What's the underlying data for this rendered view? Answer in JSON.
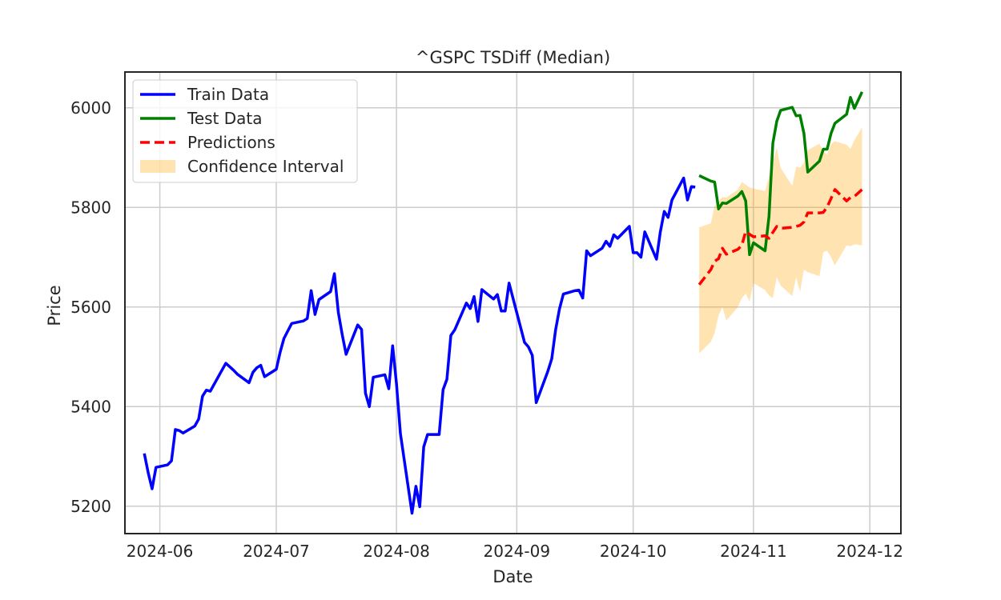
{
  "chart_data": {
    "type": "line",
    "title": "^GSPC TSDiff (Median)",
    "xlabel": "Date",
    "ylabel": "Price",
    "xlim": [
      "2024-05-23",
      "2024-12-09"
    ],
    "ylim": [
      5145,
      6072
    ],
    "grid": true,
    "legend_position": "top-left",
    "x_ticks": [
      "2024-06-01",
      "2024-07-01",
      "2024-08-01",
      "2024-09-01",
      "2024-10-01",
      "2024-11-01",
      "2024-12-01"
    ],
    "x_tick_labels": [
      "2024-06",
      "2024-07",
      "2024-08",
      "2024-09",
      "2024-10",
      "2024-11",
      "2024-12"
    ],
    "y_ticks": [
      5200,
      5400,
      5600,
      5800,
      6000
    ],
    "y_tick_labels": [
      "5200",
      "5400",
      "5600",
      "5800",
      "6000"
    ],
    "colors": {
      "train": "#0000ff",
      "test": "#008000",
      "predictions": "#ff0000",
      "confidence": "#ffa500"
    },
    "series": [
      {
        "name": "Train Data",
        "style": "solid",
        "color": "#0000ff",
        "points": [
          [
            "2024-05-28",
            5306
          ],
          [
            "2024-05-29",
            5267
          ],
          [
            "2024-05-30",
            5235
          ],
          [
            "2024-05-31",
            5278
          ],
          [
            "2024-06-03",
            5283
          ],
          [
            "2024-06-04",
            5291
          ],
          [
            "2024-06-05",
            5354
          ],
          [
            "2024-06-06",
            5352
          ],
          [
            "2024-06-07",
            5347
          ],
          [
            "2024-06-10",
            5361
          ],
          [
            "2024-06-11",
            5375
          ],
          [
            "2024-06-12",
            5421
          ],
          [
            "2024-06-13",
            5433
          ],
          [
            "2024-06-14",
            5431
          ],
          [
            "2024-06-17",
            5473
          ],
          [
            "2024-06-18",
            5487
          ],
          [
            "2024-06-20",
            5473
          ],
          [
            "2024-06-21",
            5465
          ],
          [
            "2024-06-24",
            5448
          ],
          [
            "2024-06-25",
            5469
          ],
          [
            "2024-06-26",
            5478
          ],
          [
            "2024-06-27",
            5483
          ],
          [
            "2024-06-28",
            5460
          ],
          [
            "2024-07-01",
            5475
          ],
          [
            "2024-07-02",
            5509
          ],
          [
            "2024-07-03",
            5537
          ],
          [
            "2024-07-05",
            5567
          ],
          [
            "2024-07-08",
            5572
          ],
          [
            "2024-07-09",
            5577
          ],
          [
            "2024-07-10",
            5633
          ],
          [
            "2024-07-11",
            5585
          ],
          [
            "2024-07-12",
            5615
          ],
          [
            "2024-07-15",
            5631
          ],
          [
            "2024-07-16",
            5667
          ],
          [
            "2024-07-17",
            5589
          ],
          [
            "2024-07-18",
            5545
          ],
          [
            "2024-07-19",
            5505
          ],
          [
            "2024-07-22",
            5564
          ],
          [
            "2024-07-23",
            5555
          ],
          [
            "2024-07-24",
            5427
          ],
          [
            "2024-07-25",
            5400
          ],
          [
            "2024-07-26",
            5459
          ],
          [
            "2024-07-29",
            5464
          ],
          [
            "2024-07-30",
            5436
          ],
          [
            "2024-07-31",
            5522
          ],
          [
            "2024-08-01",
            5446
          ],
          [
            "2024-08-02",
            5346
          ],
          [
            "2024-08-05",
            5186
          ],
          [
            "2024-08-06",
            5240
          ],
          [
            "2024-08-07",
            5199
          ],
          [
            "2024-08-08",
            5319
          ],
          [
            "2024-08-09",
            5344
          ],
          [
            "2024-08-12",
            5344
          ],
          [
            "2024-08-13",
            5434
          ],
          [
            "2024-08-14",
            5455
          ],
          [
            "2024-08-15",
            5543
          ],
          [
            "2024-08-16",
            5554
          ],
          [
            "2024-08-19",
            5608
          ],
          [
            "2024-08-20",
            5597
          ],
          [
            "2024-08-21",
            5621
          ],
          [
            "2024-08-22",
            5571
          ],
          [
            "2024-08-23",
            5635
          ],
          [
            "2024-08-26",
            5616
          ],
          [
            "2024-08-27",
            5625
          ],
          [
            "2024-08-28",
            5592
          ],
          [
            "2024-08-29",
            5592
          ],
          [
            "2024-08-30",
            5648
          ],
          [
            "2024-09-03",
            5529
          ],
          [
            "2024-09-04",
            5520
          ],
          [
            "2024-09-05",
            5503
          ],
          [
            "2024-09-06",
            5408
          ],
          [
            "2024-09-09",
            5471
          ],
          [
            "2024-09-10",
            5496
          ],
          [
            "2024-09-11",
            5554
          ],
          [
            "2024-09-12",
            5596
          ],
          [
            "2024-09-13",
            5626
          ],
          [
            "2024-09-16",
            5633
          ],
          [
            "2024-09-17",
            5634
          ],
          [
            "2024-09-18",
            5618
          ],
          [
            "2024-09-19",
            5713
          ],
          [
            "2024-09-20",
            5703
          ],
          [
            "2024-09-23",
            5718
          ],
          [
            "2024-09-24",
            5732
          ],
          [
            "2024-09-25",
            5722
          ],
          [
            "2024-09-26",
            5745
          ],
          [
            "2024-09-27",
            5738
          ],
          [
            "2024-09-30",
            5762
          ],
          [
            "2024-10-01",
            5709
          ],
          [
            "2024-10-02",
            5709
          ],
          [
            "2024-10-03",
            5700
          ],
          [
            "2024-10-04",
            5751
          ],
          [
            "2024-10-07",
            5696
          ],
          [
            "2024-10-08",
            5751
          ],
          [
            "2024-10-09",
            5792
          ],
          [
            "2024-10-10",
            5780
          ],
          [
            "2024-10-11",
            5815
          ],
          [
            "2024-10-14",
            5859
          ],
          [
            "2024-10-15",
            5815
          ],
          [
            "2024-10-16",
            5842
          ],
          [
            "2024-10-17",
            5841
          ]
        ]
      },
      {
        "name": "Test Data",
        "style": "solid",
        "color": "#008000",
        "points": [
          [
            "2024-10-18",
            5864
          ],
          [
            "2024-10-21",
            5853
          ],
          [
            "2024-10-22",
            5851
          ],
          [
            "2024-10-23",
            5797
          ],
          [
            "2024-10-24",
            5809
          ],
          [
            "2024-10-25",
            5808
          ],
          [
            "2024-10-28",
            5823
          ],
          [
            "2024-10-29",
            5832
          ],
          [
            "2024-10-30",
            5813
          ],
          [
            "2024-10-31",
            5705
          ],
          [
            "2024-11-01",
            5729
          ],
          [
            "2024-11-04",
            5713
          ],
          [
            "2024-11-05",
            5782
          ],
          [
            "2024-11-06",
            5929
          ],
          [
            "2024-11-07",
            5973
          ],
          [
            "2024-11-08",
            5995
          ],
          [
            "2024-11-11",
            6001
          ],
          [
            "2024-11-12",
            5984
          ],
          [
            "2024-11-13",
            5985
          ],
          [
            "2024-11-14",
            5949
          ],
          [
            "2024-11-15",
            5871
          ],
          [
            "2024-11-18",
            5893
          ],
          [
            "2024-11-19",
            5917
          ],
          [
            "2024-11-20",
            5917
          ],
          [
            "2024-11-21",
            5949
          ],
          [
            "2024-11-22",
            5969
          ],
          [
            "2024-11-25",
            5987
          ],
          [
            "2024-11-26",
            6021
          ],
          [
            "2024-11-27",
            5999
          ],
          [
            "2024-11-29",
            6032
          ]
        ]
      },
      {
        "name": "Predictions",
        "style": "dashed",
        "color": "#ff0000",
        "points": [
          [
            "2024-10-18",
            5645
          ],
          [
            "2024-10-21",
            5675
          ],
          [
            "2024-10-22",
            5692
          ],
          [
            "2024-10-23",
            5697
          ],
          [
            "2024-10-24",
            5718
          ],
          [
            "2024-10-25",
            5706
          ],
          [
            "2024-10-28",
            5716
          ],
          [
            "2024-10-29",
            5724
          ],
          [
            "2024-10-30",
            5752
          ],
          [
            "2024-10-31",
            5746
          ],
          [
            "2024-11-01",
            5741
          ],
          [
            "2024-11-04",
            5743
          ],
          [
            "2024-11-05",
            5738
          ],
          [
            "2024-11-06",
            5750
          ],
          [
            "2024-11-07",
            5762
          ],
          [
            "2024-11-08",
            5758
          ],
          [
            "2024-11-11",
            5760
          ],
          [
            "2024-11-12",
            5762
          ],
          [
            "2024-11-13",
            5764
          ],
          [
            "2024-11-14",
            5771
          ],
          [
            "2024-11-15",
            5789
          ],
          [
            "2024-11-18",
            5789
          ],
          [
            "2024-11-19",
            5790
          ],
          [
            "2024-11-20",
            5801
          ],
          [
            "2024-11-21",
            5818
          ],
          [
            "2024-11-22",
            5836
          ],
          [
            "2024-11-25",
            5813
          ],
          [
            "2024-11-26",
            5820
          ],
          [
            "2024-11-27",
            5822
          ],
          [
            "2024-11-29",
            5836
          ]
        ]
      }
    ],
    "confidence_interval": {
      "name": "Confidence Interval",
      "color": "#ffa500",
      "opacity": 0.3,
      "lower": [
        [
          "2024-10-18",
          5507
        ],
        [
          "2024-10-21",
          5530
        ],
        [
          "2024-10-22",
          5548
        ],
        [
          "2024-10-23",
          5583
        ],
        [
          "2024-10-24",
          5600
        ],
        [
          "2024-10-25",
          5573
        ],
        [
          "2024-10-28",
          5600
        ],
        [
          "2024-10-29",
          5618
        ],
        [
          "2024-10-30",
          5627
        ],
        [
          "2024-10-31",
          5611
        ],
        [
          "2024-11-01",
          5648
        ],
        [
          "2024-11-04",
          5634
        ],
        [
          "2024-11-05",
          5623
        ],
        [
          "2024-11-06",
          5618
        ],
        [
          "2024-11-07",
          5660
        ],
        [
          "2024-11-08",
          5643
        ],
        [
          "2024-11-11",
          5622
        ],
        [
          "2024-11-12",
          5660
        ],
        [
          "2024-11-13",
          5630
        ],
        [
          "2024-11-14",
          5675
        ],
        [
          "2024-11-15",
          5670
        ],
        [
          "2024-11-18",
          5662
        ],
        [
          "2024-11-19",
          5710
        ],
        [
          "2024-11-20",
          5713
        ],
        [
          "2024-11-21",
          5700
        ],
        [
          "2024-11-22",
          5684
        ],
        [
          "2024-11-25",
          5724
        ],
        [
          "2024-11-26",
          5722
        ],
        [
          "2024-11-27",
          5726
        ],
        [
          "2024-11-29",
          5724
        ]
      ],
      "upper": [
        [
          "2024-10-18",
          5760
        ],
        [
          "2024-10-21",
          5768
        ],
        [
          "2024-10-22",
          5803
        ],
        [
          "2024-10-23",
          5812
        ],
        [
          "2024-10-24",
          5821
        ],
        [
          "2024-10-25",
          5820
        ],
        [
          "2024-10-28",
          5836
        ],
        [
          "2024-10-29",
          5851
        ],
        [
          "2024-10-30",
          5846
        ],
        [
          "2024-10-31",
          5840
        ],
        [
          "2024-11-01",
          5838
        ],
        [
          "2024-11-04",
          5833
        ],
        [
          "2024-11-05",
          5862
        ],
        [
          "2024-11-06",
          5893
        ],
        [
          "2024-11-07",
          5920
        ],
        [
          "2024-11-08",
          5880
        ],
        [
          "2024-11-11",
          5843
        ],
        [
          "2024-11-12",
          5882
        ],
        [
          "2024-11-13",
          5880
        ],
        [
          "2024-11-14",
          5890
        ],
        [
          "2024-11-15",
          5915
        ],
        [
          "2024-11-18",
          5928
        ],
        [
          "2024-11-19",
          5913
        ],
        [
          "2024-11-20",
          5906
        ],
        [
          "2024-11-21",
          5928
        ],
        [
          "2024-11-22",
          5933
        ],
        [
          "2024-11-25",
          5926
        ],
        [
          "2024-11-26",
          5918
        ],
        [
          "2024-11-27",
          5935
        ],
        [
          "2024-11-29",
          5961
        ]
      ]
    }
  }
}
